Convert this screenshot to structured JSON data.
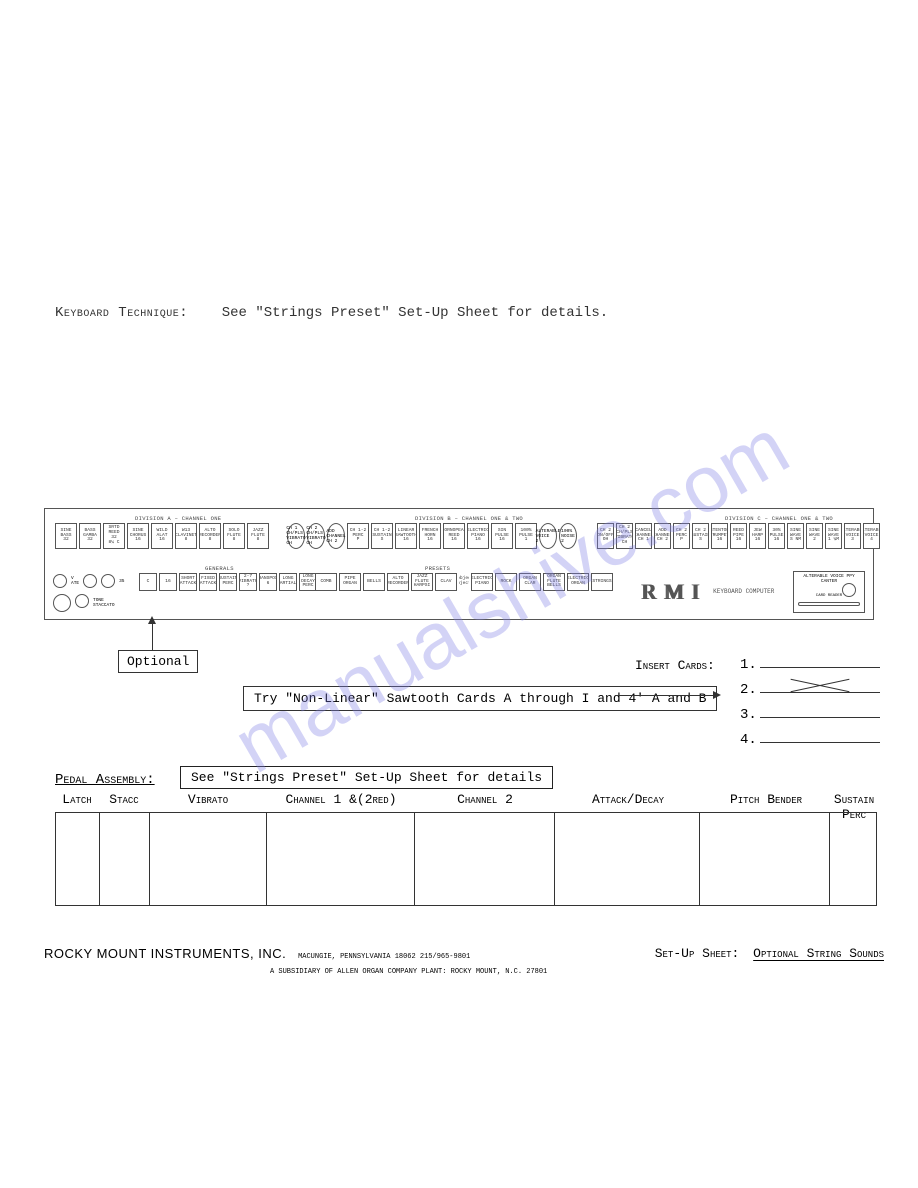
{
  "watermark": "manualshive.com",
  "keyboard_technique": {
    "label": "Keyboard Technique:",
    "text": "See \"Strings Preset\" Set-Up Sheet for details."
  },
  "panel": {
    "divisions": {
      "a": "DIVISION A – CHANNEL ONE",
      "b": "DIVISION B – CHANNEL ONE & TWO",
      "c": "DIVISION C – CHANNEL ONE & TWO",
      "generals": "GENERALS",
      "presets": "PRESETS"
    },
    "row1a": [
      {
        "t": "SINE\nBASS",
        "v": "32"
      },
      {
        "t": "BASS\nGAMBA",
        "v": "32"
      },
      {
        "t": "SRTD\nREED",
        "v": "32\n8¼ C"
      },
      {
        "t": "SINE\nCHORUS",
        "v": "16"
      },
      {
        "t": "WILD\nALAT",
        "v": "16"
      },
      {
        "t": "W13\nCLAVINET",
        "v": "8"
      },
      {
        "t": "ALTO\nRECORDER",
        "v": "8"
      },
      {
        "t": "SOLO\nFLUTE",
        "v": "8"
      },
      {
        "t": "JAZZ\nFLUTE",
        "v": "8"
      }
    ],
    "row1b": [
      {
        "t": "CH 1\nCH/PLS\nVIBRATO",
        "v": "CH",
        "circ": true
      },
      {
        "t": "CH 2\nCH/PLS\nVIBRATO",
        "v": "CH",
        "circ": true
      },
      {
        "t": "ADD\nCHANNEL",
        "v": "CH 2",
        "circ": true
      },
      {
        "t": "CH 1-2\nPERC",
        "v": "P"
      },
      {
        "t": "CH 1-2\nSUSTAIN",
        "v": "S"
      },
      {
        "t": "LINEAR\nSAWTOOTH",
        "v": "16"
      },
      {
        "t": "FRENCH\nHORN",
        "v": "16"
      },
      {
        "t": "CORNOPEAN\nREED",
        "v": "16"
      },
      {
        "t": "ELECTRIC\nPIANO",
        "v": "16"
      },
      {
        "t": "SIN\nPULSE",
        "v": "16"
      },
      {
        "t": "100%\nPULSE",
        "v": "1"
      },
      {
        "t": "ALTERABLE\nVOICE",
        "v": "2",
        "circ": true
      },
      {
        "t": "100%\nNOISE",
        "v": "2",
        "circ": true
      }
    ],
    "row1c": [
      {
        "t": "CH 2\nON/OFF",
        "v": "OH"
      },
      {
        "t": "CH 2\nCH/PLS\nVIBRATO",
        "v": "CH"
      },
      {
        "t": "CANCEL\nCHANNEL",
        "v": "CH 1"
      },
      {
        "t": "ADD\nCHANNEL",
        "v": "CH 2"
      },
      {
        "t": "CH 2\nPERC",
        "v": "P"
      },
      {
        "t": "CH 2\nSUSTAIN",
        "v": "S"
      },
      {
        "t": "STENTOR\nTRUMPET",
        "v": "16"
      },
      {
        "t": "REED\nPIPE",
        "v": "16"
      },
      {
        "t": "JEW\nHARP",
        "v": "16"
      },
      {
        "t": "30%\nPULSE",
        "v": "16"
      },
      {
        "t": "SINE\nWAVE",
        "v": "S NM"
      },
      {
        "t": "SINE\nWAVE",
        "v": "2"
      },
      {
        "t": "SINE\nWAVE",
        "v": "1 ¼M"
      },
      {
        "t": "ALTERABLE\nVOICE",
        "v": "3"
      },
      {
        "t": "ALTERABLE\nVOICE",
        "v": "4"
      }
    ],
    "generals": [
      {
        "t": "C",
        "v": ""
      },
      {
        "t": "16",
        "v": ""
      },
      {
        "t": "SHORT\nATTACK",
        "v": ""
      },
      {
        "t": "FIXED\nATTACK",
        "v": ""
      },
      {
        "t": "SUSTAIN\nPERC",
        "v": ""
      },
      {
        "t": "2-7\nVIBRATO",
        "v": "?"
      },
      {
        "t": "TRANSPOSE",
        "v": "6"
      },
      {
        "t": "LONG",
        "v": "PARTIALS"
      },
      {
        "t": "LONG\nDECAY",
        "v": "PERC"
      },
      {
        "t": "AGE\nMANUAL",
        "v": ""
      }
    ],
    "presets": [
      "COMB",
      "PIPE\nORGAN",
      "BELLS",
      "ALTO\nRECORDER",
      "JAZZ\nFLUTE\nHARPSI",
      "CLAV",
      "",
      "ELECTRIC\nPIANO",
      "ROCK",
      "ORGAN\nCLAR",
      "ORGAN\nFLUTE\nBELLS",
      "ELECTRIC\nORGAN",
      "STRINGS"
    ],
    "logo": "RMI",
    "logo_sub": "KEYBOARD\nCOMPUTER",
    "card_reader": {
      "top": "ALTERABLE\nVOICE\nPPY CANTER",
      "bottom": "CARD READER"
    }
  },
  "optional": "Optional",
  "try_text": "Try \"Non-Linear\" Sawtooth Cards A through I and 4' A and B",
  "insert_cards_label": "Insert Cards:",
  "insert_cards": [
    "1.",
    "2.",
    "3.",
    "4."
  ],
  "pedal": {
    "label": "Pedal Assembly:",
    "note": "See \"Strings Preset\" Set-Up Sheet for details",
    "headers": [
      "Latch",
      "Stacc",
      "Vibrato",
      "Channel 1 &(2red)",
      "Channel 2",
      "Attack/Decay",
      "Pitch Bender",
      "Sustain\nPerc"
    ],
    "widths": [
      44,
      50,
      118,
      148,
      140,
      146,
      130,
      46
    ]
  },
  "footer": {
    "company": "ROCKY MOUNT INSTRUMENTS, INC.",
    "addr1": "MACUNGIE, PENNSYLVANIA 18062    215/965-9801",
    "addr2": "A SUBSIDIARY OF ALLEN ORGAN COMPANY   PLANT: ROCKY MOUNT, N.C. 27801",
    "setup_label": "Set-Up Sheet:",
    "setup_value": "Optional String Sounds"
  }
}
